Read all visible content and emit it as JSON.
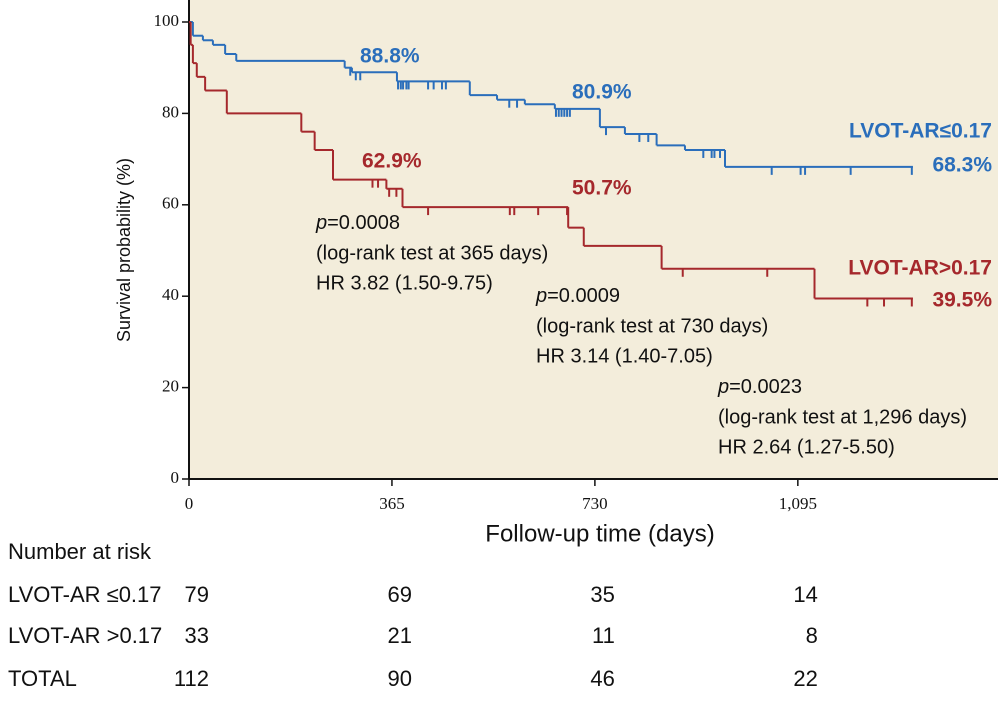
{
  "chart_data": {
    "type": "km",
    "xlabel": "Follow-up time (days)",
    "ylabel": "Survival probability (%)",
    "xlim": [
      0,
      1455
    ],
    "ylim": [
      0,
      100
    ],
    "xticks": [
      0,
      365,
      730,
      {
        "value": 1095,
        "label": "1,095"
      }
    ],
    "yticks": [
      0,
      20,
      40,
      60,
      80,
      100
    ],
    "background": "#f3eddb",
    "series": [
      {
        "name": "LVOT-AR≤0.17",
        "color": "#2a6ebb",
        "x": [
          0,
          7,
          25,
          43,
          65,
          85,
          280,
          293,
          374,
          505,
          554,
          604,
          658,
          739,
          784,
          841,
          892,
          964,
          1302
        ],
        "values": [
          100,
          97,
          96,
          95,
          93,
          91.5,
          90,
          89,
          87,
          84,
          83,
          82,
          81,
          77,
          75.5,
          73,
          72,
          68.3,
          68.3
        ],
        "censored": [
          290,
          300,
          308,
          376,
          381,
          385,
          391,
          395,
          430,
          440,
          455,
          462,
          576,
          590,
          660,
          665,
          670,
          675,
          680,
          685,
          750,
          810,
          826,
          925,
          940,
          945,
          955,
          1048,
          1100,
          1108,
          1190,
          1300
        ],
        "landmark_x": [
          365,
          730,
          1296
        ],
        "landmark_values": [
          88.8,
          80.9,
          68.3
        ],
        "landmark_labels": [
          "88.8%",
          "80.9%",
          "68.3%"
        ]
      },
      {
        "name": "LVOT-AR>0.17",
        "color": "#a5282c",
        "x": [
          0,
          3,
          7,
          14,
          29,
          68,
          202,
          226,
          259,
          355,
          384,
          682,
          710,
          850,
          1125,
          1302
        ],
        "values": [
          100,
          95,
          91,
          88,
          85,
          80,
          76,
          72,
          65.5,
          63.5,
          59.5,
          55,
          51,
          46,
          39.5,
          39.5
        ],
        "censored": [
          330,
          340,
          360,
          373,
          430,
          577,
          585,
          628,
          680,
          888,
          1040,
          1220,
          1250,
          1300
        ],
        "landmark_x": [
          365,
          730,
          1296
        ],
        "landmark_values": [
          62.9,
          50.7,
          39.5
        ],
        "landmark_labels": [
          "62.9%",
          "50.7%",
          "39.5%"
        ]
      }
    ],
    "p_symbol": "p",
    "stats": [
      {
        "p": "=0.0008",
        "test": "(log-rank test at 365 days)",
        "hr": "HR 3.82 (1.50-9.75)"
      },
      {
        "p": "=0.0009",
        "test": "(log-rank test at 730 days)",
        "hr": "HR 3.14 (1.40-7.05)"
      },
      {
        "p": "=0.0023",
        "test": "(log-rank test at 1,296 days)",
        "hr": "HR 2.64 (1.27-5.50)"
      }
    ],
    "at_risk": {
      "title": "Number at risk",
      "times": [
        0,
        365,
        730,
        1095
      ],
      "rows": [
        {
          "label": "LVOT-AR ≤0.17",
          "counts": [
            79,
            69,
            35,
            14
          ]
        },
        {
          "label": "LVOT-AR >0.17",
          "counts": [
            33,
            21,
            11,
            8
          ]
        },
        {
          "label": "TOTAL",
          "counts": [
            112,
            90,
            46,
            22
          ]
        }
      ]
    }
  }
}
